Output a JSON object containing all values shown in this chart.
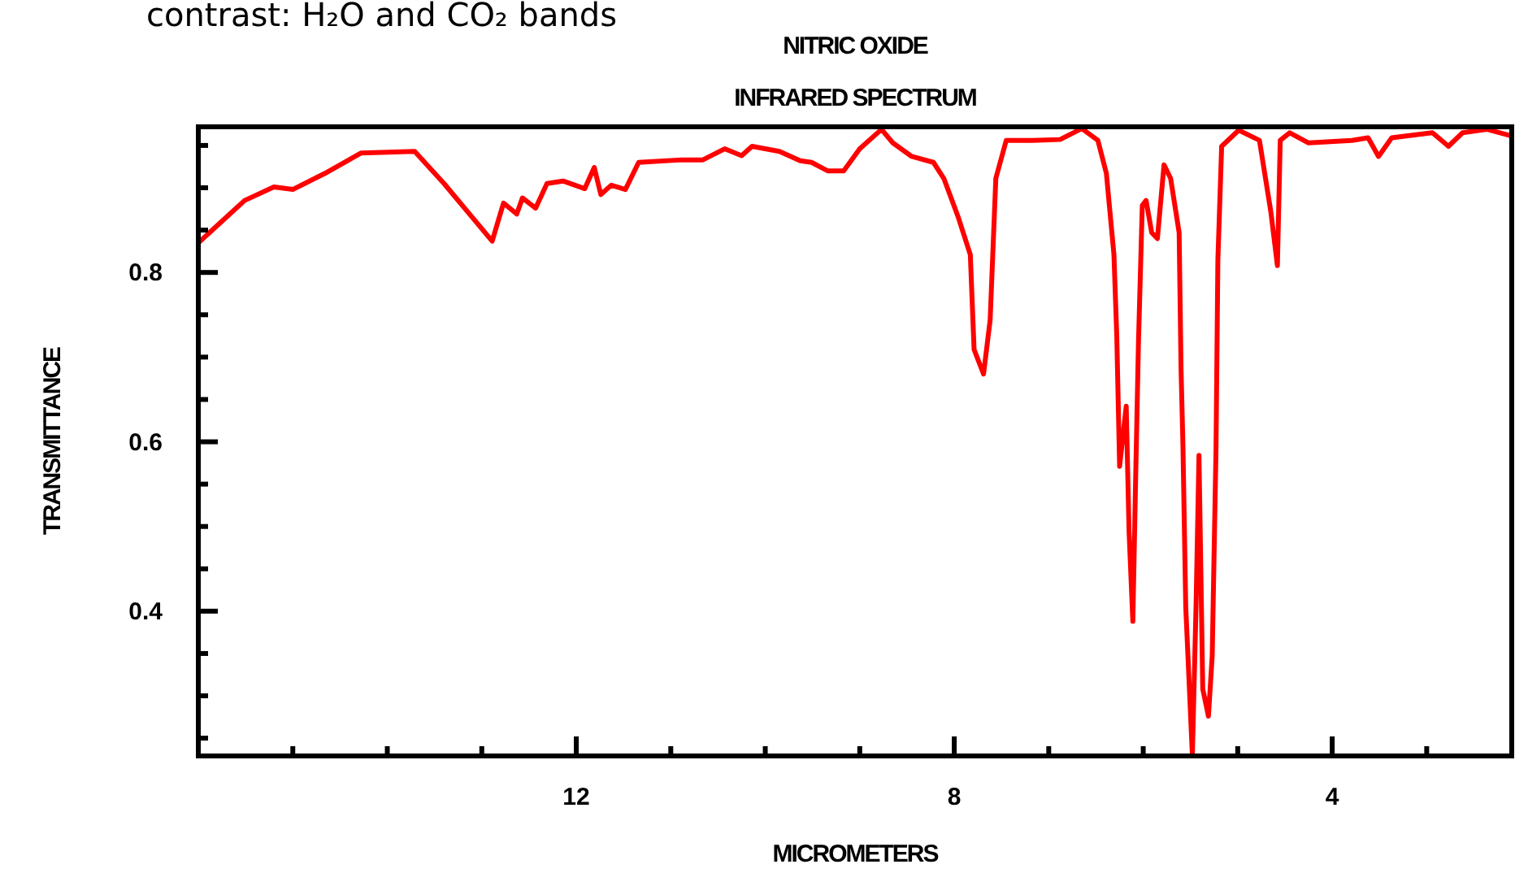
{
  "chart_data": {
    "type": "line",
    "title": "NITRIC OXIDE",
    "subtitle": "INFRARED SPECTRUM",
    "xlabel": "MICROMETERS",
    "ylabel": "TRANSMITTANCE",
    "annotations": [
      "contrast: H₂O and CO₂ bands"
    ],
    "xlim": [
      16,
      2.1
    ],
    "ylim": [
      0.229,
      0.972
    ],
    "xticks": [
      {
        "value": 15,
        "label": null
      },
      {
        "value": 14,
        "label": null
      },
      {
        "value": 13,
        "label": null
      },
      12,
      {
        "value": 11,
        "label": null
      },
      {
        "value": 10,
        "label": null
      },
      {
        "value": 9,
        "label": null
      },
      8,
      {
        "value": 7,
        "label": null
      },
      {
        "value": 6,
        "label": null
      },
      {
        "value": 5,
        "label": null
      },
      4,
      {
        "value": 3,
        "label": null
      }
    ],
    "yticks": [
      {
        "value": 0.25,
        "label": null
      },
      {
        "value": 0.3,
        "label": null
      },
      {
        "value": 0.35,
        "label": null
      },
      {
        "value": 0.4,
        "label": "0.4"
      },
      {
        "value": 0.45,
        "label": null
      },
      {
        "value": 0.5,
        "label": null
      },
      {
        "value": 0.55,
        "label": null
      },
      {
        "value": 0.6,
        "label": "0.6"
      },
      {
        "value": 0.65,
        "label": null
      },
      {
        "value": 0.7,
        "label": null
      },
      {
        "value": 0.75,
        "label": null
      },
      {
        "value": 0.8,
        "label": "0.8"
      },
      {
        "value": 0.85,
        "label": null
      },
      {
        "value": 0.9,
        "label": null
      },
      {
        "value": 0.95,
        "label": null
      }
    ],
    "marker": "none",
    "line_style": "solid",
    "series": [
      {
        "color": "#ff0000",
        "x": [
          16.0,
          15.51,
          15.2,
          15.0,
          14.66,
          14.28,
          13.71,
          13.4,
          12.89,
          12.77,
          12.63,
          12.57,
          12.43,
          12.31,
          12.14,
          11.91,
          11.81,
          11.74,
          11.63,
          11.48,
          11.34,
          10.88,
          10.66,
          10.43,
          10.25,
          10.14,
          9.85,
          9.63,
          9.51,
          9.34,
          9.17,
          9.0,
          8.77,
          8.65,
          8.45,
          8.22,
          8.11,
          7.96,
          7.83,
          7.79,
          7.69,
          7.62,
          7.56,
          7.45,
          7.17,
          6.88,
          6.65,
          6.48,
          6.39,
          6.31,
          6.28,
          6.25,
          6.18,
          6.15,
          6.11,
          6.08,
          6.05,
          6.01,
          5.97,
          5.91,
          5.85,
          5.78,
          5.71,
          5.62,
          5.6,
          5.58,
          5.55,
          5.48,
          5.44,
          5.41,
          5.37,
          5.31,
          5.27,
          5.23,
          5.21,
          5.17,
          4.99,
          4.77,
          4.65,
          4.58,
          4.55,
          4.45,
          4.25,
          3.79,
          3.62,
          3.51,
          3.37,
          2.94,
          2.77,
          2.62,
          2.36,
          2.13
        ],
        "values": [
          0.835,
          0.885,
          0.901,
          0.898,
          0.917,
          0.941,
          0.943,
          0.905,
          0.837,
          0.882,
          0.869,
          0.888,
          0.876,
          0.905,
          0.908,
          0.899,
          0.924,
          0.892,
          0.903,
          0.898,
          0.93,
          0.933,
          0.933,
          0.946,
          0.938,
          0.949,
          0.943,
          0.932,
          0.93,
          0.92,
          0.92,
          0.946,
          0.969,
          0.953,
          0.937,
          0.93,
          0.911,
          0.866,
          0.821,
          0.709,
          0.68,
          0.744,
          0.911,
          0.956,
          0.956,
          0.957,
          0.97,
          0.956,
          0.917,
          0.821,
          0.725,
          0.571,
          0.642,
          0.494,
          0.388,
          0.558,
          0.719,
          0.879,
          0.885,
          0.847,
          0.84,
          0.927,
          0.911,
          0.847,
          0.687,
          0.597,
          0.405,
          0.23,
          0.411,
          0.584,
          0.308,
          0.276,
          0.347,
          0.59,
          0.815,
          0.949,
          0.968,
          0.956,
          0.872,
          0.808,
          0.956,
          0.965,
          0.953,
          0.956,
          0.959,
          0.937,
          0.959,
          0.965,
          0.949,
          0.965,
          0.969,
          0.962
        ]
      }
    ]
  }
}
